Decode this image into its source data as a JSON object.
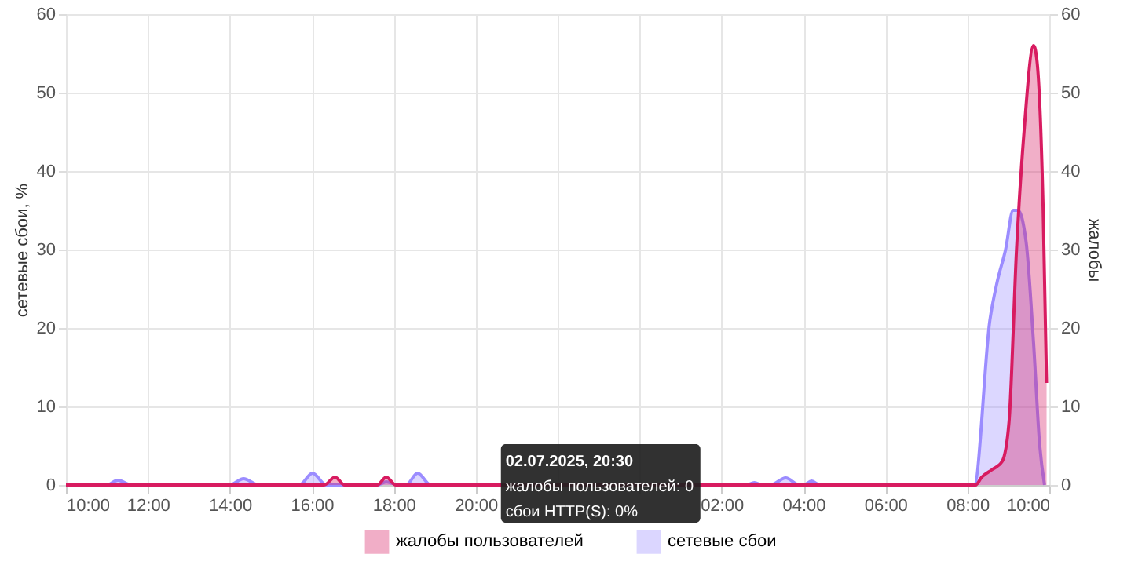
{
  "chart_data": {
    "type": "area",
    "ylabel": "сетевые сбои, %",
    "y2label": "жалобы",
    "xlim": [
      "2025-07-02T10:00",
      "2025-07-03T10:00"
    ],
    "xticks": [
      {
        "value": "2025-07-02T10:00",
        "label": "10:00"
      },
      {
        "value": "2025-07-02T12:00",
        "label": "12:00"
      },
      {
        "value": "2025-07-02T14:00",
        "label": "14:00"
      },
      {
        "value": "2025-07-02T16:00",
        "label": "16:00"
      },
      {
        "value": "2025-07-02T18:00",
        "label": "18:00"
      },
      {
        "value": "2025-07-02T20:00",
        "label": "20:00"
      },
      {
        "value": "2025-07-02T22:00",
        "label": null
      },
      {
        "value": "2025-07-03T00:00",
        "label": null
      },
      {
        "value": "2025-07-03T02:00",
        "label": "02:00"
      },
      {
        "value": "2025-07-03T04:00",
        "label": "04:00"
      },
      {
        "value": "2025-07-03T06:00",
        "label": "06:00"
      },
      {
        "value": "2025-07-03T08:00",
        "label": "08:00"
      },
      {
        "value": "2025-07-03T10:00",
        "label": "10:00"
      }
    ],
    "ylim": [
      0,
      60
    ],
    "yticks": [
      0,
      10,
      20,
      30,
      40,
      50,
      60
    ],
    "y2lim": [
      0,
      60
    ],
    "y2ticks": [
      0,
      10,
      20,
      30,
      40,
      50,
      60
    ],
    "grid": true,
    "legend": "bottom",
    "marker": "none",
    "series": [
      {
        "name": "жалобы пользователей",
        "color": "#d81b60",
        "axis": "y2",
        "x": [
          "2025-07-02T10:00",
          "2025-07-02T16:18",
          "2025-07-02T16:34",
          "2025-07-02T16:48",
          "2025-07-02T17:36",
          "2025-07-02T17:49",
          "2025-07-02T18:03",
          "2025-07-03T08:12",
          "2025-07-03T08:21",
          "2025-07-03T08:37",
          "2025-07-03T08:51",
          "2025-07-03T09:01",
          "2025-07-03T09:12",
          "2025-07-03T09:23",
          "2025-07-03T09:37",
          "2025-07-03T09:42",
          "2025-07-03T09:51",
          "2025-07-03T09:56"
        ],
        "values": [
          0,
          0,
          1,
          0,
          0,
          1,
          0,
          0,
          1,
          2,
          3,
          8,
          30,
          45,
          56,
          54,
          35,
          13
        ]
      },
      {
        "name": "сетевые сбои",
        "color": "#9b8cff",
        "axis": "y",
        "x": [
          "2025-07-02T10:00",
          "2025-07-02T11:00",
          "2025-07-02T11:16",
          "2025-07-02T11:36",
          "2025-07-02T14:00",
          "2025-07-02T14:20",
          "2025-07-02T14:42",
          "2025-07-02T15:42",
          "2025-07-02T16:01",
          "2025-07-02T16:21",
          "2025-07-02T17:36",
          "2025-07-02T17:49",
          "2025-07-02T18:06",
          "2025-07-02T18:18",
          "2025-07-02T18:35",
          "2025-07-02T18:54",
          "2025-07-03T02:36",
          "2025-07-03T02:48",
          "2025-07-03T03:00",
          "2025-07-03T03:12",
          "2025-07-03T03:34",
          "2025-07-03T03:54",
          "2025-07-03T04:00",
          "2025-07-03T04:12",
          "2025-07-03T04:24",
          "2025-07-03T08:10",
          "2025-07-03T08:33",
          "2025-07-03T08:44",
          "2025-07-03T08:56",
          "2025-07-03T09:07",
          "2025-07-03T09:14",
          "2025-07-03T09:26",
          "2025-07-03T09:37",
          "2025-07-03T09:46",
          "2025-07-03T09:53"
        ],
        "values": [
          0,
          0,
          0.6,
          0,
          0,
          0.8,
          0,
          0,
          1.5,
          0,
          0,
          0.4,
          0,
          0,
          1.5,
          0,
          0,
          0.3,
          0,
          0,
          0.9,
          0,
          0,
          0.5,
          0,
          0,
          21,
          26,
          30,
          35,
          35,
          31,
          18,
          5,
          0
        ]
      }
    ],
    "annotations": [
      {
        "text": "02.07.2025, 20:30",
        "x": "2025-07-02T20:30",
        "y": 0
      },
      {
        "text": "жалобы пользователей: 0",
        "x": "2025-07-02T20:30",
        "y": 0
      },
      {
        "text": "сбои HTTP(S): 0%",
        "x": "2025-07-02T20:30",
        "y": 0
      }
    ]
  }
}
